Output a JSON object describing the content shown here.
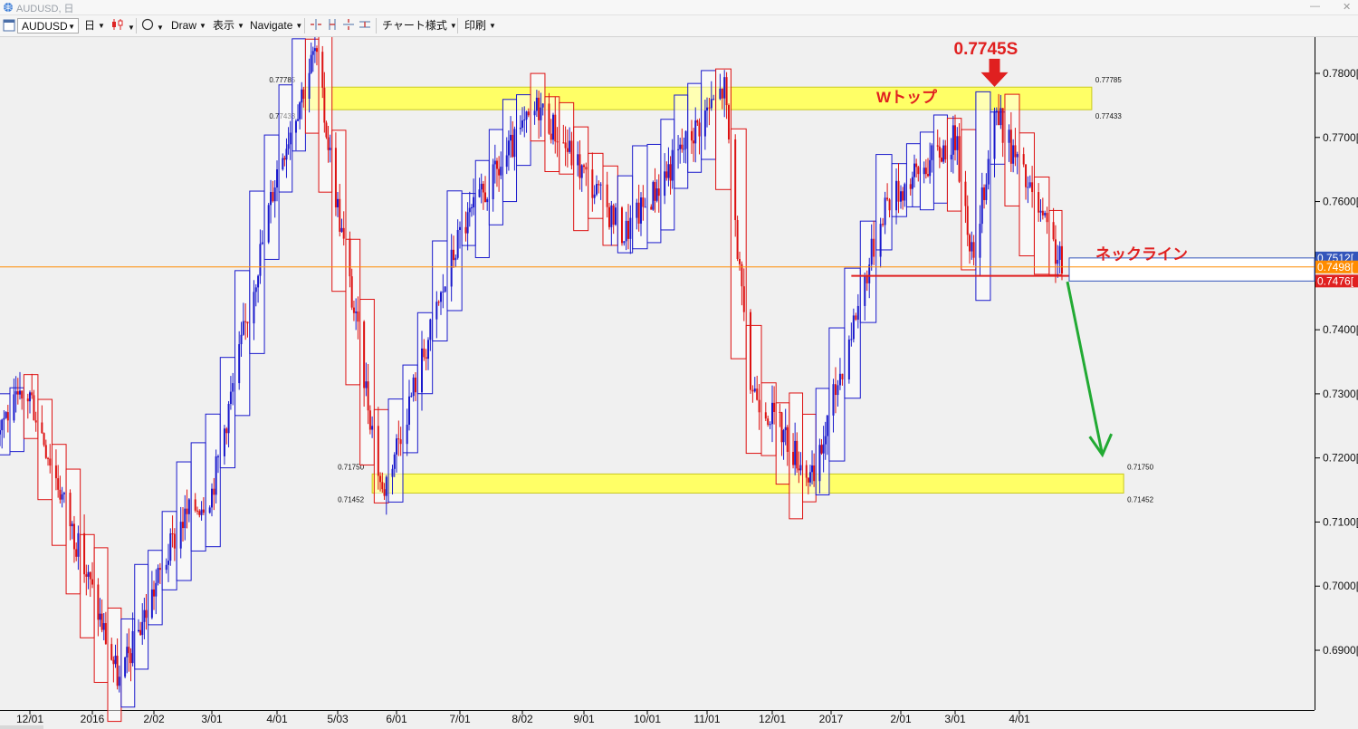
{
  "window": {
    "title": "AUDUSD, 日",
    "minimize": "—",
    "close": "✕"
  },
  "toolbar": {
    "symbol": "AUDUSD",
    "timeframe": "日",
    "draw": "Draw",
    "display": "表示",
    "navigate": "Navigate",
    "chart_style": "チャート様式",
    "print": "印刷"
  },
  "chart": {
    "annotations": {
      "price_label": "0.7745S",
      "double_top": "Wトップ",
      "neckline": "ネックライン"
    },
    "zones": [
      {
        "name": "resistance-zone",
        "upper_label": "0.77785",
        "lower_label": "0.77433",
        "upper": 0.77785,
        "lower": 0.77433,
        "date_from": "2016-04-15",
        "date_to": "2017-05-05"
      },
      {
        "name": "support-zone",
        "upper_label": "0.71750",
        "lower_label": "0.71452",
        "upper": 0.7175,
        "lower": 0.71452,
        "date_from": "2016-05-20",
        "date_to": "2017-05-20"
      }
    ],
    "price_axis_labels": [
      "0.7800[0",
      "0.7700[0",
      "0.7600[0",
      "0.7500[0",
      "0.7400[0",
      "0.7300[0",
      "0.7200[0",
      "0.7100[0",
      "0.7000[0",
      "0.6900[0"
    ],
    "price_axis_values": [
      0.78,
      0.77,
      0.76,
      0.75,
      0.74,
      0.73,
      0.72,
      0.71,
      0.7,
      0.69
    ],
    "price_tags": [
      {
        "label": "0.7512[",
        "value": 0.7512,
        "color": "#3355bb"
      },
      {
        "label": "0.7498[",
        "value": 0.7498,
        "color": "#ff8c00"
      },
      {
        "label": "0.7476[",
        "value": 0.7476,
        "color": "#e02020"
      }
    ],
    "time_axis_labels": [
      "12/01",
      "2016",
      "2/02",
      "3/01",
      "4/01",
      "5/03",
      "6/01",
      "7/01",
      "8/02",
      "9/01",
      "10/01",
      "11/01",
      "12/01",
      "2017",
      "2/01",
      "3/01",
      "4/01"
    ],
    "time_axis_dates": [
      "2015-12-01",
      "2016-01-01",
      "2016-02-02",
      "2016-03-01",
      "2016-04-01",
      "2016-05-03",
      "2016-06-01",
      "2016-07-01",
      "2016-08-02",
      "2016-09-01",
      "2016-10-01",
      "2016-11-01",
      "2016-12-01",
      "2017-01-01",
      "2017-02-01",
      "2017-03-01",
      "2017-04-01"
    ],
    "current_price": 0.7498,
    "neckline_price": 0.7484,
    "neckline_from": "2017-01-10",
    "neckline_to": "2017-05-15",
    "top_date": "2017-03-20",
    "arrow_target_price": 0.7205,
    "arrow_target_date": "2017-05-10",
    "last_date": "2017-04-21",
    "colors": {
      "bull": "#1a1acc",
      "bear": "#dd1111",
      "zone": "#ffff66",
      "annotation": "#e02020",
      "forecast": "#22aa33",
      "hline": "#ff8c00"
    }
  },
  "chart_data": {
    "type": "candlestick",
    "symbol": "AUDUSD",
    "period": "日",
    "series": [
      {
        "date": "2015-12-01",
        "price": 0.73
      },
      {
        "date": "2016-01-15",
        "price": 0.685
      },
      {
        "date": "2016-02-15",
        "price": 0.71
      },
      {
        "date": "2016-03-01",
        "price": 0.715
      },
      {
        "date": "2016-04-01",
        "price": 0.765
      },
      {
        "date": "2016-04-21",
        "price": 0.7835
      },
      {
        "date": "2016-05-25",
        "price": 0.7145
      },
      {
        "date": "2016-07-01",
        "price": 0.755
      },
      {
        "date": "2016-08-10",
        "price": 0.775
      },
      {
        "date": "2016-09-20",
        "price": 0.755
      },
      {
        "date": "2016-11-09",
        "price": 0.7778
      },
      {
        "date": "2016-11-20",
        "price": 0.732
      },
      {
        "date": "2016-12-23",
        "price": 0.716
      },
      {
        "date": "2017-01-25",
        "price": 0.76
      },
      {
        "date": "2017-03-01",
        "price": 0.77
      },
      {
        "date": "2017-03-10",
        "price": 0.75
      },
      {
        "date": "2017-03-20",
        "price": 0.7745
      },
      {
        "date": "2017-04-21",
        "price": 0.7498
      }
    ],
    "ylim": [
      0.6815,
      0.7862
    ]
  }
}
